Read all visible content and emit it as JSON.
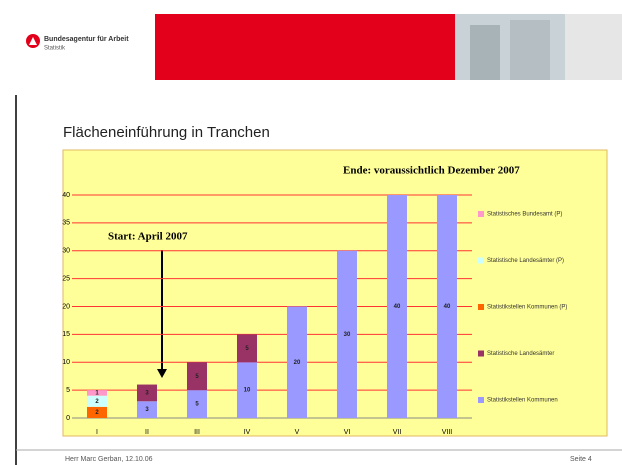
{
  "header": {
    "org": "Bundesagentur für Arbeit",
    "unit": "Statistik"
  },
  "slide_title": "Flächeneinführung in Tranchen",
  "chart_data": {
    "type": "stacked-bar",
    "annotations": [
      "Ende: voraussichtlich Dezember 2007",
      "Start: April 2007"
    ],
    "categories": [
      "I",
      "II",
      "III",
      "IV",
      "V",
      "VI",
      "VII",
      "VIII"
    ],
    "series": [
      {
        "name": "Statistikstellen Kommunen",
        "color": "#9999ff",
        "values": [
          null,
          3,
          5,
          10,
          20,
          30,
          40,
          40
        ]
      },
      {
        "name": "Statistische Landesämter",
        "color": "#993366",
        "values": [
          null,
          3,
          5,
          5,
          null,
          null,
          null,
          null
        ]
      },
      {
        "name": "Statistikstellen Kommunen (P)",
        "color": "#ff6600",
        "values": [
          2,
          null,
          null,
          null,
          null,
          null,
          null,
          null
        ]
      },
      {
        "name": "Statistische Landesämter (P)",
        "color": "#ccffff",
        "values": [
          2,
          null,
          null,
          null,
          null,
          null,
          null,
          null
        ]
      },
      {
        "name": "Statistisches Bundesamt (P)",
        "color": "#ff99cc",
        "values": [
          1,
          null,
          null,
          null,
          null,
          null,
          null,
          null
        ]
      }
    ],
    "ylim": [
      0,
      40
    ],
    "yticks": [
      0,
      5,
      10,
      15,
      20,
      25,
      30,
      35,
      40
    ],
    "grid": true,
    "grid_color": "#ff3333"
  },
  "footer": {
    "author": "Herr Marc Gerban, 12.10.06",
    "page": "Seite 4"
  }
}
